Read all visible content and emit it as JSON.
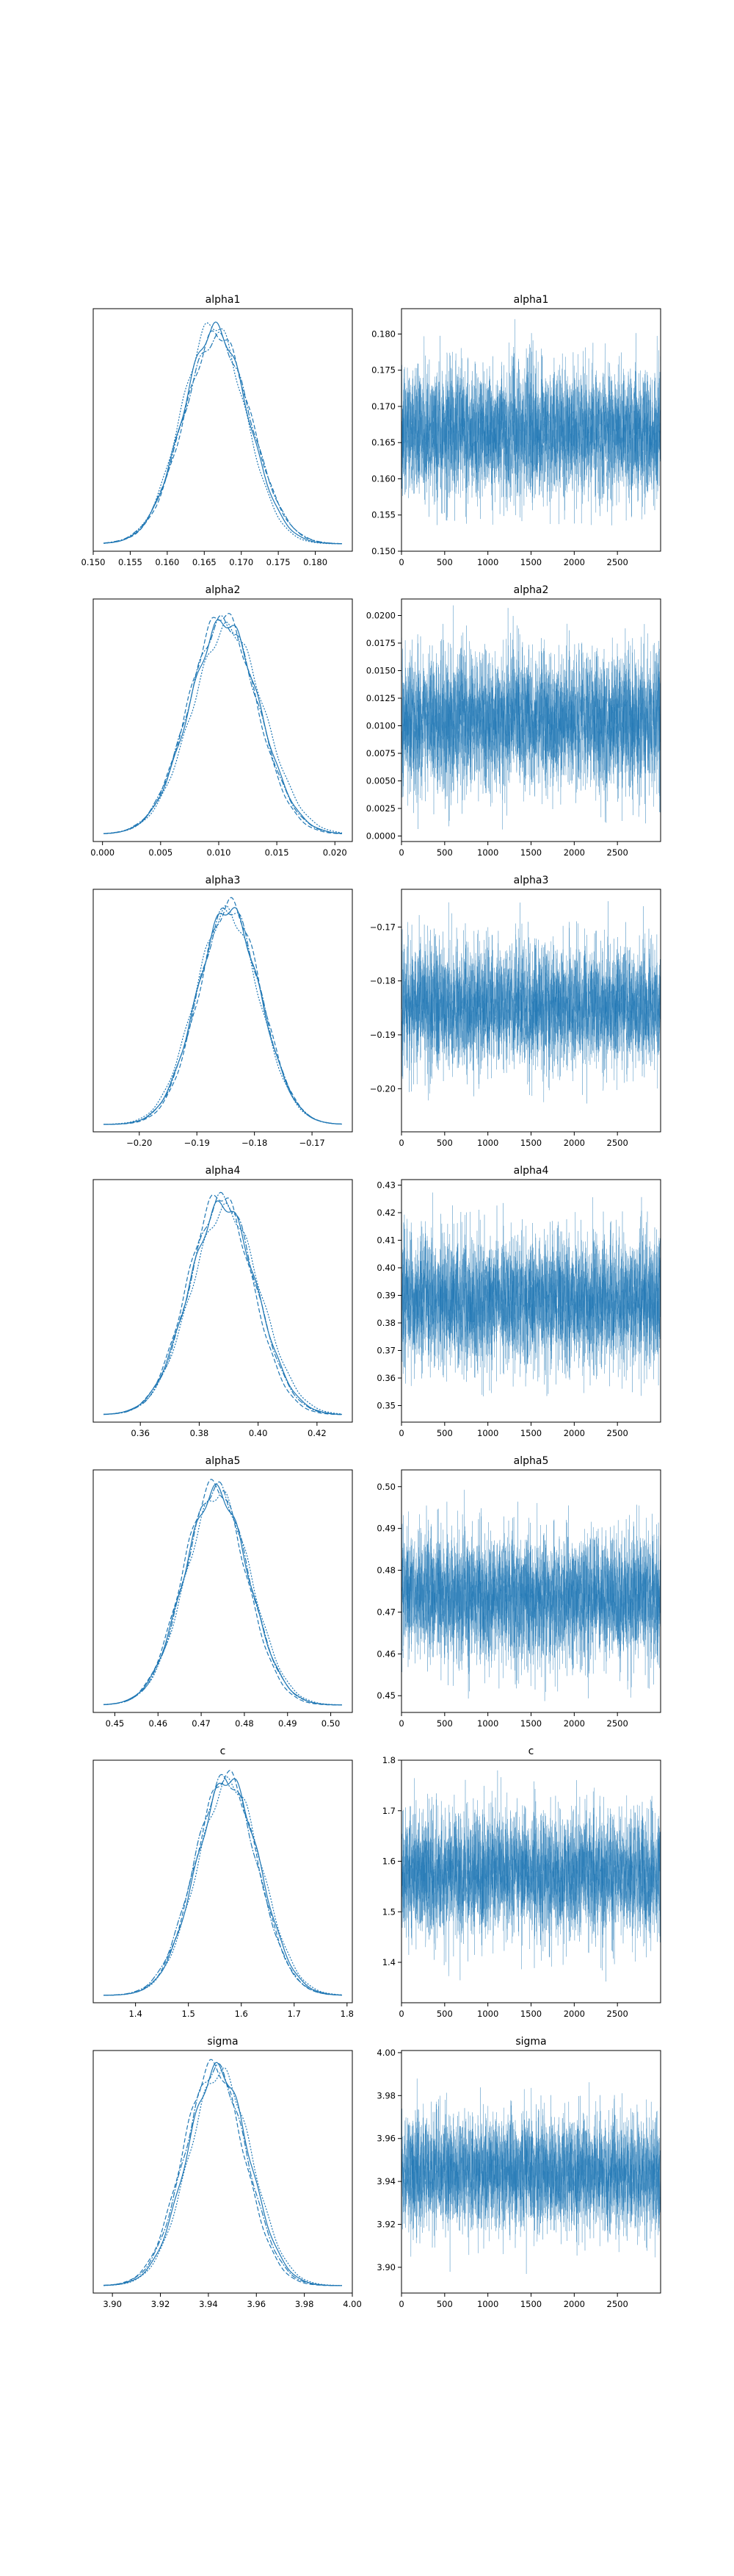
{
  "figure": {
    "line_color": "#1f77b4"
  },
  "chart_data": [
    {
      "type": "line",
      "title": "alpha1",
      "xlim": [
        0.15,
        0.185
      ],
      "xticks": [
        "0.150",
        "0.155",
        "0.160",
        "0.165",
        "0.170",
        "0.175",
        "0.180"
      ],
      "xtick_values": [
        0.15,
        0.155,
        0.16,
        0.165,
        0.17,
        0.175,
        0.18
      ],
      "yticks": [],
      "series": [
        {
          "mean": 0.1665,
          "sd": 0.0044
        },
        {
          "mean": 0.1668,
          "sd": 0.0045
        },
        {
          "mean": 0.1662,
          "sd": 0.0043
        },
        {
          "mean": 0.1667,
          "sd": 0.0046
        }
      ]
    },
    {
      "type": "line",
      "title": "alpha1",
      "xlim": [
        0,
        3000
      ],
      "ylim": [
        0.15,
        0.1835
      ],
      "xticks": [
        "0",
        "500",
        "1000",
        "1500",
        "2000",
        "2500"
      ],
      "xtick_values": [
        0,
        500,
        1000,
        1500,
        2000,
        2500
      ],
      "yticks": [
        "0.150",
        "0.155",
        "0.160",
        "0.165",
        "0.170",
        "0.175",
        "0.180"
      ],
      "ytick_values": [
        0.15,
        0.155,
        0.16,
        0.165,
        0.17,
        0.175,
        0.18
      ],
      "trace": {
        "mean": 0.1665,
        "sd": 0.0044,
        "min": 0.1535,
        "max": 0.183
      }
    },
    {
      "type": "line",
      "title": "alpha2",
      "xlim": [
        -0.0008,
        0.0215
      ],
      "xticks": [
        "0.000",
        "0.005",
        "0.010",
        "0.015",
        "0.020"
      ],
      "xtick_values": [
        0.0,
        0.005,
        0.01,
        0.015,
        0.02
      ],
      "yticks": [],
      "series": [
        {
          "mean": 0.0105,
          "sd": 0.003
        },
        {
          "mean": 0.0103,
          "sd": 0.0029
        },
        {
          "mean": 0.0108,
          "sd": 0.0031
        },
        {
          "mean": 0.0104,
          "sd": 0.003
        }
      ]
    },
    {
      "type": "line",
      "title": "alpha2",
      "xlim": [
        0,
        3000
      ],
      "ylim": [
        -0.0005,
        0.0215
      ],
      "xticks": [
        "0",
        "500",
        "1000",
        "1500",
        "2000",
        "2500"
      ],
      "xtick_values": [
        0,
        500,
        1000,
        1500,
        2000,
        2500
      ],
      "yticks": [
        "0.0000",
        "0.0025",
        "0.0050",
        "0.0075",
        "0.0100",
        "0.0125",
        "0.0150",
        "0.0175",
        "0.0200"
      ],
      "ytick_values": [
        0.0,
        0.0025,
        0.005,
        0.0075,
        0.01,
        0.0125,
        0.015,
        0.0175,
        0.02
      ],
      "trace": {
        "mean": 0.0105,
        "sd": 0.003,
        "min": 0.0005,
        "max": 0.021
      }
    },
    {
      "type": "line",
      "title": "alpha3",
      "xlim": [
        -0.208,
        -0.163
      ],
      "xticks": [
        "−0.20",
        "−0.19",
        "−0.18",
        "−0.17"
      ],
      "xtick_values": [
        -0.2,
        -0.19,
        -0.18,
        -0.17
      ],
      "yticks": [],
      "series": [
        {
          "mean": -0.1845,
          "sd": 0.0055
        },
        {
          "mean": -0.1842,
          "sd": 0.0054
        },
        {
          "mean": -0.1848,
          "sd": 0.0056
        },
        {
          "mean": -0.1844,
          "sd": 0.0055
        }
      ]
    },
    {
      "type": "line",
      "title": "alpha3",
      "xlim": [
        0,
        3000
      ],
      "ylim": [
        -0.208,
        -0.163
      ],
      "xticks": [
        "0",
        "500",
        "1000",
        "1500",
        "2000",
        "2500"
      ],
      "xtick_values": [
        0,
        500,
        1000,
        1500,
        2000,
        2500
      ],
      "yticks": [
        "−0.20",
        "−0.19",
        "−0.18",
        "−0.17"
      ],
      "ytick_values": [
        -0.2,
        -0.19,
        -0.18,
        -0.17
      ],
      "trace": {
        "mean": -0.1845,
        "sd": 0.0055,
        "min": -0.206,
        "max": -0.165
      }
    },
    {
      "type": "line",
      "title": "alpha4",
      "xlim": [
        0.344,
        0.432
      ],
      "xticks": [
        "0.36",
        "0.38",
        "0.40",
        "0.42"
      ],
      "xtick_values": [
        0.36,
        0.38,
        0.4,
        0.42
      ],
      "yticks": [],
      "series": [
        {
          "mean": 0.388,
          "sd": 0.0115
        },
        {
          "mean": 0.387,
          "sd": 0.011
        },
        {
          "mean": 0.389,
          "sd": 0.0118
        },
        {
          "mean": 0.388,
          "sd": 0.0112
        }
      ]
    },
    {
      "type": "line",
      "title": "alpha4",
      "xlim": [
        0,
        3000
      ],
      "ylim": [
        0.344,
        0.432
      ],
      "xticks": [
        "0",
        "500",
        "1000",
        "1500",
        "2000",
        "2500"
      ],
      "xtick_values": [
        0,
        500,
        1000,
        1500,
        2000,
        2500
      ],
      "yticks": [
        "0.35",
        "0.36",
        "0.37",
        "0.38",
        "0.39",
        "0.40",
        "0.41",
        "0.42",
        "0.43"
      ],
      "ytick_values": [
        0.35,
        0.36,
        0.37,
        0.38,
        0.39,
        0.4,
        0.41,
        0.42,
        0.43
      ],
      "trace": {
        "mean": 0.388,
        "sd": 0.0115,
        "min": 0.347,
        "max": 0.428
      }
    },
    {
      "type": "line",
      "title": "alpha5",
      "xlim": [
        0.445,
        0.505
      ],
      "xticks": [
        "0.45",
        "0.46",
        "0.47",
        "0.48",
        "0.49",
        "0.50"
      ],
      "xtick_values": [
        0.45,
        0.46,
        0.47,
        0.48,
        0.49,
        0.5
      ],
      "yticks": [],
      "series": [
        {
          "mean": 0.4735,
          "sd": 0.0075
        },
        {
          "mean": 0.473,
          "sd": 0.0073
        },
        {
          "mean": 0.474,
          "sd": 0.0076
        },
        {
          "mean": 0.4736,
          "sd": 0.0074
        }
      ]
    },
    {
      "type": "line",
      "title": "alpha5",
      "xlim": [
        0,
        3000
      ],
      "ylim": [
        0.446,
        0.504
      ],
      "xticks": [
        "0",
        "500",
        "1000",
        "1500",
        "2000",
        "2500"
      ],
      "xtick_values": [
        0,
        500,
        1000,
        1500,
        2000,
        2500
      ],
      "yticks": [
        "0.45",
        "0.46",
        "0.47",
        "0.48",
        "0.49",
        "0.50"
      ],
      "ytick_values": [
        0.45,
        0.46,
        0.47,
        0.48,
        0.49,
        0.5
      ],
      "trace": {
        "mean": 0.4735,
        "sd": 0.0075,
        "min": 0.448,
        "max": 0.502
      }
    },
    {
      "type": "line",
      "title": "c",
      "xlim": [
        1.32,
        1.81
      ],
      "xticks": [
        "1.4",
        "1.5",
        "1.6",
        "1.7",
        "1.8"
      ],
      "xtick_values": [
        1.4,
        1.5,
        1.6,
        1.7,
        1.8
      ],
      "yticks": [],
      "series": [
        {
          "mean": 1.575,
          "sd": 0.06
        },
        {
          "mean": 1.572,
          "sd": 0.059
        },
        {
          "mean": 1.578,
          "sd": 0.061
        },
        {
          "mean": 1.57,
          "sd": 0.06
        }
      ]
    },
    {
      "type": "line",
      "title": "c",
      "xlim": [
        0,
        3000
      ],
      "ylim": [
        1.32,
        1.8
      ],
      "xticks": [
        "0",
        "500",
        "1000",
        "1500",
        "2000",
        "2500"
      ],
      "xtick_values": [
        0,
        500,
        1000,
        1500,
        2000,
        2500
      ],
      "yticks": [
        "1.4",
        "1.5",
        "1.6",
        "1.7",
        "1.8"
      ],
      "ytick_values": [
        1.4,
        1.5,
        1.6,
        1.7,
        1.8
      ],
      "trace": {
        "mean": 1.575,
        "sd": 0.06,
        "min": 1.35,
        "max": 1.78
      }
    },
    {
      "type": "line",
      "title": "sigma",
      "xlim": [
        3.892,
        4.0
      ],
      "xticks": [
        "3.90",
        "3.92",
        "3.94",
        "3.96",
        "3.98",
        "4.00"
      ],
      "xtick_values": [
        3.9,
        3.92,
        3.94,
        3.96,
        3.98,
        4.0
      ],
      "yticks": [],
      "series": [
        {
          "mean": 3.944,
          "sd": 0.013
        },
        {
          "mean": 3.942,
          "sd": 0.0128
        },
        {
          "mean": 3.945,
          "sd": 0.0132
        },
        {
          "mean": 3.943,
          "sd": 0.013
        }
      ]
    },
    {
      "type": "line",
      "title": "sigma",
      "xlim": [
        0,
        3000
      ],
      "ylim": [
        3.888,
        4.001
      ],
      "xticks": [
        "0",
        "500",
        "1000",
        "1500",
        "2000",
        "2500"
      ],
      "xtick_values": [
        0,
        500,
        1000,
        1500,
        2000,
        2500
      ],
      "yticks": [
        "3.90",
        "3.92",
        "3.94",
        "3.96",
        "3.98",
        "4.00"
      ],
      "ytick_values": [
        3.9,
        3.92,
        3.94,
        3.96,
        3.98,
        4.0
      ],
      "trace": {
        "mean": 3.944,
        "sd": 0.013,
        "min": 3.895,
        "max": 3.995
      }
    }
  ]
}
